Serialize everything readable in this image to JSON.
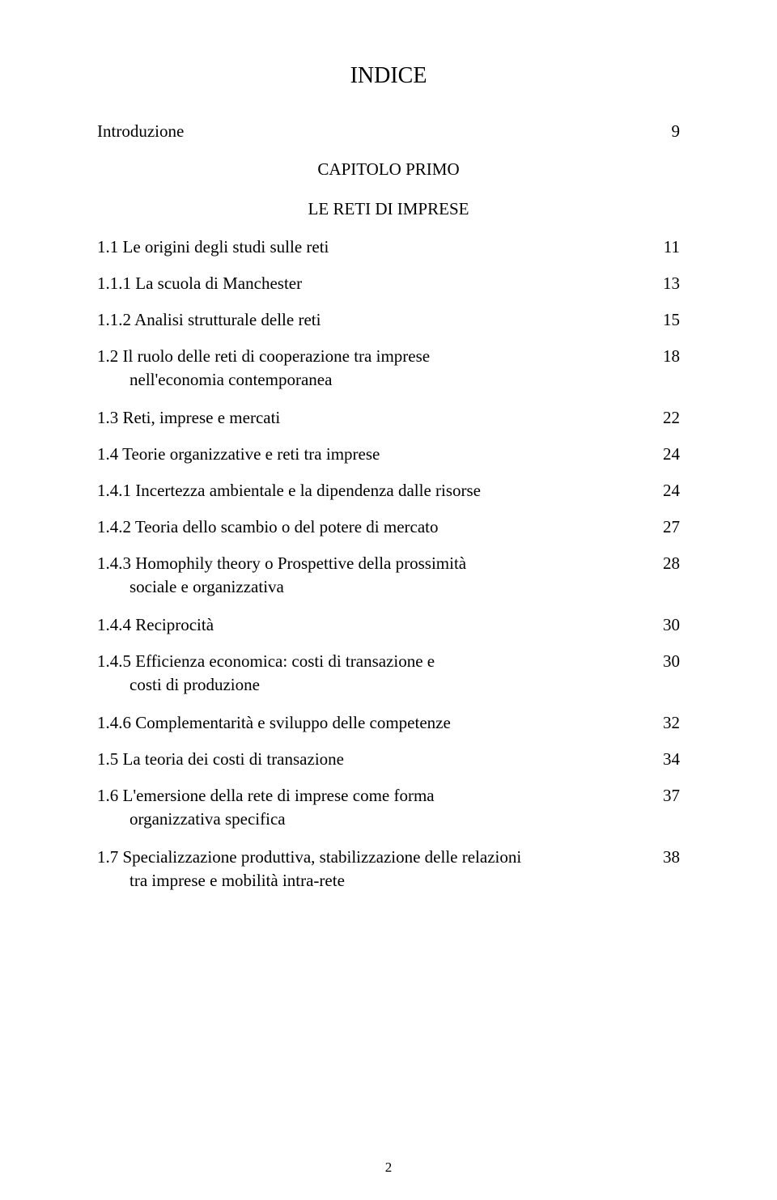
{
  "title": "INDICE",
  "intro": {
    "label": "Introduzione",
    "page": "9"
  },
  "chapter": {
    "heading": "CAPITOLO PRIMO",
    "subtitle": "LE RETI DI IMPRESE"
  },
  "entries": [
    {
      "label": "1.1 Le origini degli studi sulle reti",
      "page": "11",
      "indent": 0
    },
    {
      "label": "1.1.1 La scuola di Manchester",
      "page": "13",
      "indent": 0
    },
    {
      "label": "1.1.2 Analisi strutturale delle reti",
      "page": "15",
      "indent": 0
    },
    {
      "label": "1.2 Il ruolo delle reti di cooperazione tra imprese",
      "page": "18",
      "indent": 0,
      "cont": "nell'economia contemporanea",
      "cont_indent": 1
    },
    {
      "label": "1.3 Reti, imprese e mercati",
      "page": "22",
      "indent": 0
    },
    {
      "label": "1.4 Teorie organizzative e reti tra imprese",
      "page": "24",
      "indent": 0
    },
    {
      "label": "1.4.1 Incertezza ambientale e la dipendenza dalle risorse",
      "page": "24",
      "indent": 0
    },
    {
      "label": "1.4.2 Teoria dello scambio o del potere di mercato",
      "page": "27",
      "indent": 0
    },
    {
      "label": "1.4.3 Homophily theory o Prospettive della prossimità",
      "page": "28",
      "indent": 0,
      "cont": "sociale e organizzativa",
      "cont_indent": 1
    },
    {
      "label": "1.4.4 Reciprocità",
      "page": "30",
      "indent": 0
    },
    {
      "label": "1.4.5 Efficienza economica: costi di transazione e",
      "page": "30",
      "indent": 0,
      "cont": "costi di produzione",
      "cont_indent": 1
    },
    {
      "label": "1.4.6 Complementarità e sviluppo delle competenze",
      "page": "32",
      "indent": 0
    },
    {
      "label": "1.5 La teoria dei costi di transazione",
      "page": "34",
      "indent": 0
    },
    {
      "label": "1.6 L'emersione della rete di imprese come forma",
      "page": "37",
      "indent": 0,
      "cont": "organizzativa specifica",
      "cont_indent": 1
    },
    {
      "label": "1.7 Specializzazione produttiva, stabilizzazione delle relazioni",
      "page": "38",
      "indent": 0,
      "cont": "tra imprese e mobilità intra-rete",
      "cont_indent": 1
    }
  ],
  "page_number": "2",
  "colors": {
    "text": "#000000",
    "background": "#ffffff"
  },
  "typography": {
    "font_family": "Times New Roman",
    "title_fontsize": 28,
    "body_fontsize": 21,
    "pagenum_fontsize": 17
  }
}
